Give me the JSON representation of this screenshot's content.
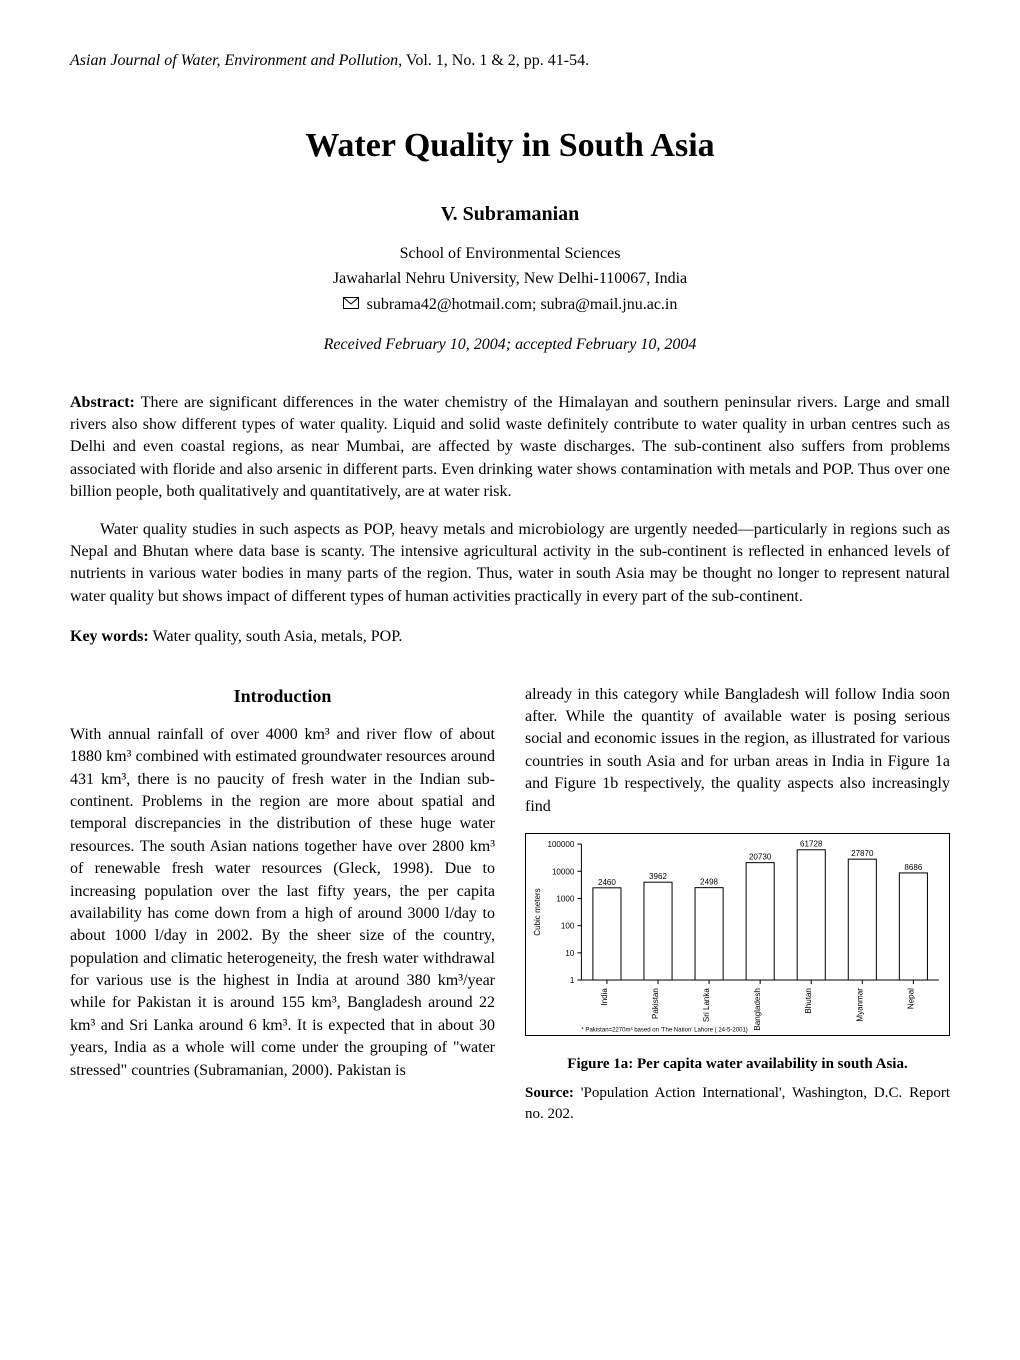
{
  "journal": {
    "name": "Asian Journal of Water, Environment and Pollution,",
    "vol_info": " Vol. 1, No. 1 & 2, pp. 41-54."
  },
  "title": "Water Quality in South Asia",
  "author": "V. Subramanian",
  "affiliation": {
    "line1": "School of Environmental Sciences",
    "line2": "Jawaharlal Nehru University, New Delhi-110067, India"
  },
  "email": "subrama42@hotmail.com; subra@mail.jnu.ac.in",
  "dates": "Received February 10, 2004; accepted February 10, 2004",
  "abstract": {
    "label": "Abstract: ",
    "p1": "There are significant differences in the water chemistry of the Himalayan and southern peninsular rivers. Large and small rivers also show different types of water quality. Liquid and solid waste definitely contribute to water quality in urban centres such as Delhi and even coastal regions, as near Mumbai, are affected by waste discharges. The sub-continent also suffers from problems associated with floride and also arsenic in different parts. Even drinking water shows contamination with metals and POP. Thus over one billion people, both qualitatively and quantitatively, are at water risk.",
    "p2": "Water quality studies in such aspects as POP, heavy metals and microbiology are urgently needed—particularly in regions such as Nepal and Bhutan where data base is scanty. The intensive agricultural activity in the sub-continent is reflected in enhanced levels of nutrients in various water bodies in many parts of the region. Thus, water in south Asia may be thought no longer to represent natural water quality but shows impact of different types of human activities practically in every part of the sub-continent."
  },
  "keywords": {
    "label": "Key words: ",
    "text": "Water quality, south Asia, metals, POP."
  },
  "intro": {
    "heading": "Introduction",
    "left_text": "With annual rainfall of over 4000 km³ and river flow of about 1880 km³ combined with estimated groundwater resources around 431 km³, there is no paucity of fresh water in the Indian sub-continent. Problems in the region are more about spatial and temporal discrepancies in the distribution of these huge water resources. The south Asian nations together have over 2800 km³ of renewable fresh water resources (Gleck, 1998). Due to increasing population over the last fifty years, the per capita availability has come down from a high of around 3000 l/day to about 1000 l/day in 2002. By the sheer size of the country, population and climatic heterogeneity, the fresh water withdrawal for various use is the highest in India at around 380 km³/year while for Pakistan it is around 155 km³, Bangladesh around 22 km³ and Sri Lanka around 6 km³. It is expected that in about 30 years, India as a whole will come under the grouping of \"water stressed\" countries (Subramanian, 2000). Pakistan is",
    "right_text": "already in this category while Bangladesh will follow India soon after. While the quantity of available water is posing serious social and economic issues in the region, as illustrated for various countries in south Asia and for urban areas in India in Figure 1a and Figure 1b respectively, the quality aspects also increasingly find"
  },
  "figure1a": {
    "caption": "Figure 1a: Per capita water availability in south Asia.",
    "source_label": "Source: ",
    "source_text": "'Population Action International', Washington, D.C. Report no. 202.",
    "chart": {
      "type": "bar",
      "y_label": "Cubic meters",
      "y_scale": "log",
      "y_ticks": [
        1,
        10,
        100,
        1000,
        10000,
        100000
      ],
      "categories": [
        "India",
        "Pakistan",
        "Sri Lanka",
        "Bangladesh",
        "Bhutan",
        "Myanmar",
        "Nepal"
      ],
      "values": [
        2460,
        3962,
        2498,
        20730,
        61728,
        27870,
        8686
      ],
      "bar_fill": "#ffffff",
      "bar_stroke": "#000000",
      "bar_stroke_width": 1,
      "background": "#ffffff",
      "grid_color": "#000000",
      "label_fontsize": 8,
      "axis_fontsize": 8,
      "value_label_fontsize": 8,
      "footnote": "* Pakistan=2270m³ based on 'The Nation' Lahore ( 24-5-2001)"
    }
  }
}
